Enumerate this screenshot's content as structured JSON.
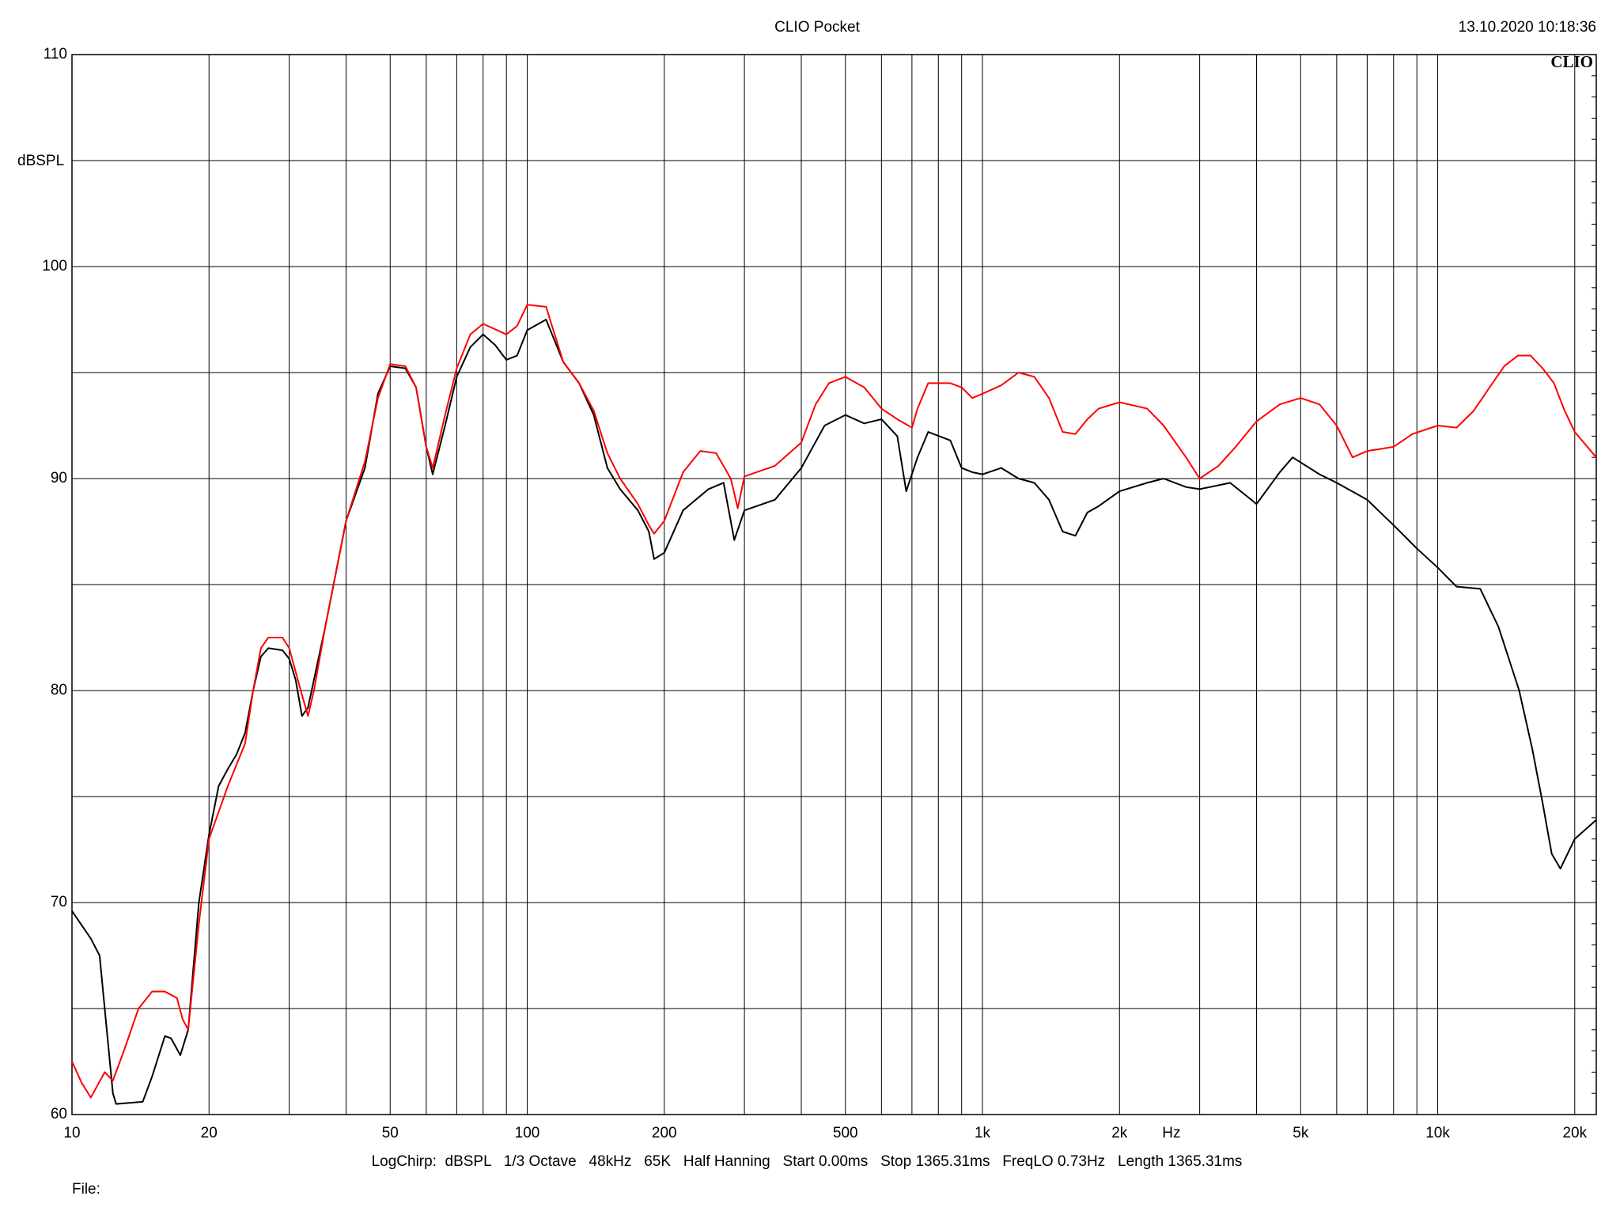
{
  "chart_data": {
    "type": "line",
    "title": "CLIO Pocket",
    "timestamp": "13.10.2020 10:18:36",
    "logo": "CLIO",
    "y_label": "dBSPL",
    "x_label": "Hz",
    "footer": "LogChirp:  dBSPL   1/3 Octave   48kHz   65K   Half Hanning   Start 0.00ms   Stop 1365.31ms   FreqLO 0.73Hz   Length 1365.31ms",
    "file_label": "File:",
    "xscale": "log",
    "grid": true,
    "xlim": [
      10,
      22300
    ],
    "ylim": [
      60,
      110
    ],
    "xticks": [
      10,
      20,
      50,
      100,
      200,
      500,
      {
        "value": 1000,
        "label": "1k"
      },
      {
        "value": 2000,
        "label": "2k"
      },
      {
        "value": 5000,
        "label": "5k"
      },
      {
        "value": 10000,
        "label": "10k"
      },
      {
        "value": 20000,
        "label": "20k"
      }
    ],
    "xminor": [
      30,
      40,
      60,
      70,
      80,
      90,
      300,
      400,
      600,
      700,
      800,
      900,
      3000,
      4000,
      6000,
      7000,
      8000,
      9000
    ],
    "yticks": [
      60,
      70,
      80,
      90,
      100,
      110
    ],
    "yminor": [
      65,
      75,
      85,
      95,
      105
    ],
    "series": [
      {
        "color": "#000000",
        "x": [
          10,
          11,
          11.5,
          11.8,
          12.3,
          12.5,
          14.3,
          15,
          16,
          16.5,
          17.3,
          18,
          19,
          20,
          21,
          22,
          23,
          24,
          25,
          26,
          27,
          29,
          30,
          31,
          32,
          33,
          36,
          40,
          44,
          47,
          50,
          54,
          57,
          60,
          62,
          66,
          70,
          75,
          80,
          85,
          90,
          95,
          100,
          110,
          120,
          130,
          140,
          150,
          160,
          175,
          185,
          190,
          200,
          220,
          250,
          270,
          285,
          300,
          350,
          400,
          450,
          500,
          550,
          600,
          650,
          680,
          720,
          760,
          850,
          900,
          950,
          1000,
          1100,
          1200,
          1300,
          1400,
          1500,
          1600,
          1700,
          1800,
          2000,
          2300,
          2500,
          2800,
          3000,
          3500,
          4000,
          4500,
          4800,
          5500,
          6000,
          7000,
          8000,
          9000,
          10000,
          11000,
          12400,
          13600,
          15100,
          16150,
          17000,
          17800,
          18600,
          20000,
          22300
        ],
        "values": [
          69.6,
          68.3,
          67.5,
          65,
          61,
          60.5,
          60.6,
          61.8,
          63.7,
          63.6,
          62.8,
          64,
          70,
          73.2,
          75.5,
          76.3,
          77,
          78,
          80,
          81.6,
          82,
          81.9,
          81.5,
          80.5,
          78.8,
          79.2,
          83,
          88,
          90.5,
          94,
          95.3,
          95.2,
          94.3,
          91.5,
          90.2,
          92.5,
          94.8,
          96.2,
          96.8,
          96.3,
          95.6,
          95.8,
          97,
          97.5,
          95.5,
          94.5,
          93,
          90.5,
          89.5,
          88.5,
          87.5,
          86.2,
          86.5,
          88.5,
          89.5,
          89.8,
          87.1,
          88.5,
          89,
          90.5,
          92.5,
          93,
          92.6,
          92.8,
          92,
          89.4,
          91,
          92.2,
          91.8,
          90.5,
          90.3,
          90.2,
          90.5,
          90,
          89.8,
          89,
          87.5,
          87.3,
          88.4,
          88.7,
          89.4,
          89.8,
          90,
          89.6,
          89.5,
          89.8,
          88.8,
          90.3,
          91,
          90.2,
          89.8,
          89,
          87.8,
          86.7,
          85.8,
          84.9,
          84.8,
          83,
          80,
          77.2,
          74.7,
          72.3,
          71.6,
          73,
          73.9
        ]
      },
      {
        "color": "#ff0000",
        "x": [
          10,
          10.5,
          11,
          11.8,
          12.3,
          13,
          14,
          15,
          16,
          17,
          17.5,
          18,
          19,
          20,
          22,
          24,
          25,
          26,
          27,
          29,
          30,
          32,
          33,
          34,
          36,
          40,
          44,
          47,
          50,
          54,
          57,
          60,
          62,
          66,
          70,
          75,
          80,
          90,
          95,
          100,
          110,
          120,
          130,
          140,
          150,
          160,
          175,
          185,
          190,
          200,
          220,
          240,
          260,
          280,
          290,
          300,
          350,
          400,
          430,
          460,
          500,
          550,
          600,
          650,
          700,
          720,
          760,
          850,
          900,
          950,
          1000,
          1100,
          1200,
          1300,
          1400,
          1500,
          1600,
          1700,
          1800,
          2000,
          2300,
          2500,
          2800,
          3000,
          3300,
          3600,
          4000,
          4500,
          5000,
          5500,
          6000,
          6500,
          7000,
          7500,
          8000,
          8800,
          10000,
          11000,
          12000,
          13000,
          14000,
          15000,
          16000,
          17000,
          18000,
          19000,
          20000,
          22300
        ],
        "values": [
          62.5,
          61.5,
          60.8,
          62,
          61.6,
          63,
          65,
          65.8,
          65.8,
          65.5,
          64.5,
          64,
          69,
          73,
          75.5,
          77.5,
          80,
          82,
          82.5,
          82.5,
          82,
          79.8,
          78.8,
          80,
          83,
          88,
          90.8,
          93.8,
          95.4,
          95.3,
          94.3,
          91.5,
          90.5,
          93,
          95.2,
          96.8,
          97.3,
          96.8,
          97.2,
          98.2,
          98.1,
          95.5,
          94.5,
          93.2,
          91.2,
          90,
          88.8,
          87.8,
          87.4,
          88,
          90.3,
          91.3,
          91.2,
          90,
          88.6,
          90.1,
          90.6,
          91.7,
          93.5,
          94.5,
          94.8,
          94.3,
          93.3,
          92.8,
          92.4,
          93.3,
          94.5,
          94.5,
          94.3,
          93.8,
          94,
          94.4,
          95,
          94.8,
          93.8,
          92.2,
          92.1,
          92.8,
          93.3,
          93.6,
          93.3,
          92.5,
          91,
          90,
          90.6,
          91.5,
          92.7,
          93.5,
          93.8,
          93.5,
          92.5,
          91,
          91.3,
          91.4,
          91.5,
          92.1,
          92.5,
          92.4,
          93.2,
          94.3,
          95.3,
          95.8,
          95.8,
          95.2,
          94.5,
          93.2,
          92.2,
          91
        ]
      }
    ]
  }
}
